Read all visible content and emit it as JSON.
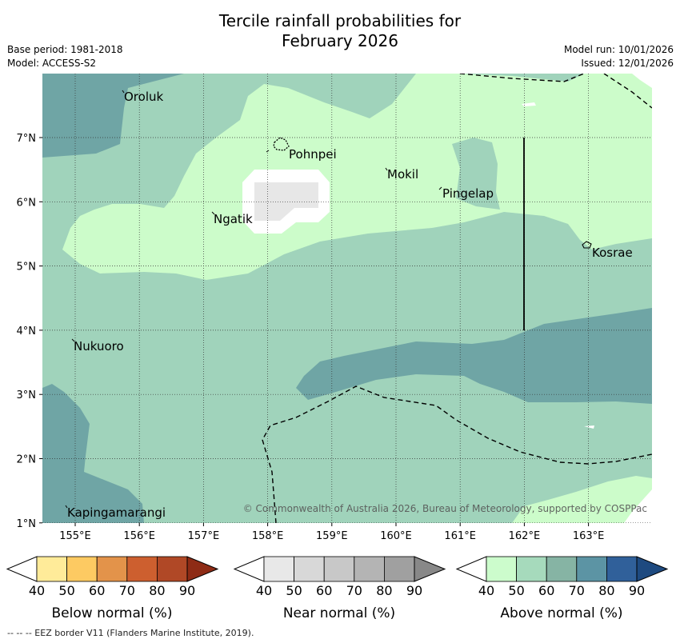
{
  "title_line1": "Tercile rainfall probabilities for",
  "title_line2": "February 2026",
  "meta_left": {
    "base_period": "Base period: 1981-2018",
    "model": "Model: ACCESS-S2"
  },
  "meta_right": {
    "model_run": "Model run: 10/01/2026",
    "issued": "Issued: 12/01/2026"
  },
  "map": {
    "lon_ticks": [
      "155°E",
      "156°E",
      "157°E",
      "158°E",
      "159°E",
      "160°E",
      "161°E",
      "162°E",
      "163°E"
    ],
    "lat_ticks": [
      "7°N",
      "6°N",
      "5°N",
      "4°N",
      "3°N",
      "2°N",
      "1°N"
    ],
    "places": [
      "Oroluk",
      "Pohnpei",
      "Mokil",
      "Pingelap",
      "Ngatik",
      "Kosrae",
      "Nukuoro",
      "Kapingamarangi"
    ],
    "copyright": "© Commonwealth of Australia 2026, Bureau of Meteorology, supported by COSPPac"
  },
  "colorbars": {
    "below": {
      "label": "Below normal (%)",
      "colors": [
        "#ffeb99",
        "#fdca62",
        "#e3934a",
        "#cd5f2f",
        "#b04826",
        "#8e2b15"
      ]
    },
    "near": {
      "label": "Near normal (%)",
      "colors": [
        "#e8e8e8",
        "#d8d8d8",
        "#c8c8c8",
        "#b4b4b4",
        "#a0a0a0",
        "#888888"
      ]
    },
    "above": {
      "label": "Above normal (%)",
      "colors": [
        "#ccfccc",
        "#a6dabc",
        "#86b4a4",
        "#5c94a4",
        "#30609a",
        "#1e4a80"
      ]
    },
    "ticks": [
      "40",
      "50",
      "60",
      "70",
      "80",
      "90"
    ]
  },
  "footer": "--  --  -- EEZ border V11 (Flanders Marine Institute, 2019)."
}
